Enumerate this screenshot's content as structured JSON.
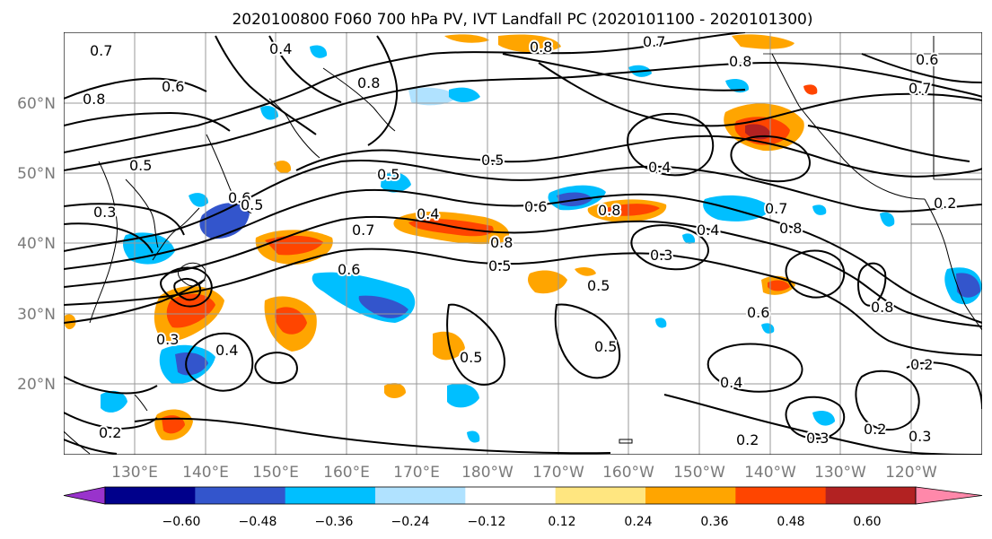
{
  "title": "2020100800 F060 700 hPa PV, IVT Landfall PC (2020101100 - 2020101300)",
  "lat_labels": [
    "60°N",
    "50°N",
    "40°N",
    "30°N",
    "20°N"
  ],
  "lon_labels": [
    "130°E",
    "140°E",
    "150°E",
    "160°E",
    "170°E",
    "180°W",
    "170°W",
    "160°W",
    "150°W",
    "140°W",
    "130°W",
    "120°W"
  ],
  "colorbar": {
    "ticks": [
      "−0.60",
      "−0.48",
      "−0.36",
      "−0.24",
      "−0.12",
      "0.12",
      "0.24",
      "0.36",
      "0.48",
      "0.60"
    ],
    "colors": [
      "#9933cc",
      "#00008b",
      "#3355cc",
      "#00bfff",
      "#b0e2ff",
      "#ffffff",
      "#ffe680",
      "#ffa500",
      "#ff4500",
      "#b22222",
      "#ff88aa"
    ]
  },
  "contour_labels": [
    "0.7",
    "0.4",
    "0.8",
    "0.7",
    "0.8",
    "0.6",
    "0.8",
    "0.6",
    "0.7",
    "0.5",
    "0.3",
    "0.5",
    "0.5",
    "0.4",
    "0.6",
    "0.4",
    "0.8",
    "0.7",
    "0.8",
    "0.7",
    "0.6",
    "0.8",
    "0.5",
    "0.8",
    "0.6",
    "0.3",
    "0.4",
    "0.5",
    "0.5",
    "0.3",
    "0.4",
    "0.6",
    "0.8",
    "0.5",
    "0.5",
    "0.4",
    "0.2",
    "0.3",
    "0.2",
    "0.3",
    "0.2",
    "0.2",
    "0.2"
  ]
}
